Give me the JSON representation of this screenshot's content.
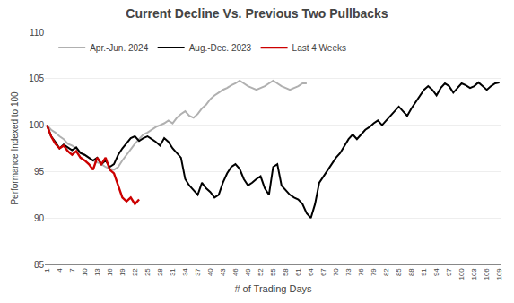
{
  "chart_data": {
    "type": "line",
    "title": "Current Decline Vs. Previous Two Pullbacks",
    "x_label": "# of Trading Days",
    "y_label": "Performance Indexed to 100",
    "xlim": [
      0.5,
      109.5
    ],
    "ylim": [
      85,
      110
    ],
    "xticks": [
      1,
      4,
      7,
      10,
      13,
      16,
      19,
      22,
      25,
      28,
      31,
      34,
      37,
      40,
      43,
      46,
      49,
      52,
      55,
      58,
      61,
      64,
      67,
      70,
      73,
      76,
      79,
      82,
      85,
      88,
      91,
      94,
      97,
      100,
      103,
      106,
      109
    ],
    "yticks": [
      85,
      90,
      95,
      100,
      105,
      110
    ],
    "grid": "y",
    "legend": "upper left",
    "series": [
      {
        "name": "Apr.-Jun. 2024",
        "color": "#b0b0b0",
        "x": [
          1,
          2,
          3,
          4,
          5,
          6,
          7,
          8,
          9,
          10,
          11,
          12,
          13,
          14,
          15,
          16,
          17,
          18,
          19,
          20,
          21,
          22,
          23,
          24,
          25,
          26,
          27,
          28,
          29,
          30,
          31,
          32,
          33,
          34,
          35,
          36,
          37,
          38,
          39,
          40,
          41,
          42,
          43,
          44,
          45,
          46,
          47,
          48,
          49,
          50,
          51,
          52,
          53,
          54,
          55,
          56,
          57,
          58,
          59,
          60,
          61,
          62,
          63
        ],
        "values": [
          100.0,
          99.5,
          99.2,
          98.8,
          98.5,
          98.0,
          97.8,
          97.5,
          97.0,
          96.8,
          96.5,
          96.2,
          96.0,
          95.8,
          95.5,
          95.3,
          95.2,
          95.5,
          96.2,
          96.8,
          97.5,
          98.0,
          98.5,
          99.0,
          99.2,
          99.5,
          99.8,
          100.0,
          100.2,
          100.5,
          100.2,
          100.8,
          101.2,
          101.5,
          101.0,
          100.8,
          101.2,
          101.8,
          102.2,
          102.8,
          103.2,
          103.5,
          103.8,
          104.0,
          104.3,
          104.5,
          104.8,
          104.5,
          104.2,
          104.0,
          103.8,
          104.0,
          104.2,
          104.5,
          104.8,
          104.5,
          104.2,
          104.0,
          103.8,
          104.0,
          104.2,
          104.5,
          104.5
        ]
      },
      {
        "name": "Aug.-Dec. 2023",
        "color": "#000000",
        "x": [
          1,
          2,
          3,
          4,
          5,
          6,
          7,
          8,
          9,
          10,
          11,
          12,
          13,
          14,
          15,
          16,
          17,
          18,
          19,
          20,
          21,
          22,
          23,
          24,
          25,
          26,
          27,
          28,
          29,
          30,
          31,
          32,
          33,
          34,
          35,
          36,
          37,
          38,
          39,
          40,
          41,
          42,
          43,
          44,
          45,
          46,
          47,
          48,
          49,
          50,
          51,
          52,
          53,
          54,
          55,
          56,
          57,
          58,
          59,
          60,
          61,
          62,
          63,
          64,
          65,
          66,
          67,
          68,
          69,
          70,
          71,
          72,
          73,
          74,
          75,
          76,
          77,
          78,
          79,
          80,
          81,
          82,
          83,
          84,
          85,
          86,
          87,
          88,
          89,
          90,
          91,
          92,
          93,
          94,
          95,
          96,
          97,
          98,
          99,
          100,
          101,
          102,
          103,
          104,
          105,
          106,
          107,
          108,
          109
        ],
        "values": [
          100.0,
          98.8,
          98.2,
          97.5,
          97.9,
          97.6,
          97.3,
          97.6,
          97.0,
          96.8,
          96.5,
          96.2,
          96.5,
          95.8,
          96.2,
          95.5,
          95.8,
          96.8,
          97.5,
          98.0,
          98.6,
          98.8,
          98.3,
          98.6,
          98.8,
          98.5,
          98.2,
          97.8,
          98.6,
          98.2,
          97.5,
          97.0,
          96.5,
          94.2,
          93.5,
          93.0,
          92.5,
          93.8,
          93.2,
          92.8,
          92.2,
          92.5,
          93.8,
          94.8,
          95.5,
          95.8,
          95.3,
          94.2,
          93.5,
          93.8,
          94.2,
          94.5,
          93.2,
          92.5,
          95.5,
          95.8,
          93.5,
          93.0,
          92.5,
          92.2,
          92.0,
          91.5,
          90.5,
          90.0,
          91.5,
          93.8,
          94.5,
          95.2,
          95.8,
          96.5,
          97.0,
          97.8,
          98.5,
          99.0,
          98.5,
          99.0,
          99.5,
          99.8,
          100.2,
          100.5,
          100.0,
          100.5,
          101.0,
          101.5,
          102.0,
          101.5,
          101.0,
          101.8,
          102.5,
          103.2,
          103.8,
          104.2,
          103.8,
          103.2,
          104.0,
          104.5,
          104.2,
          103.5,
          104.0,
          104.5,
          104.3,
          104.0,
          104.2,
          104.6,
          104.2,
          103.8,
          104.2,
          104.5,
          104.6
        ]
      },
      {
        "name": "Last 4 Weeks",
        "color": "#cc0000",
        "x": [
          1,
          2,
          3,
          4,
          5,
          6,
          7,
          8,
          9,
          10,
          11,
          12,
          13,
          14,
          15,
          16,
          17,
          18,
          19,
          20,
          21,
          22,
          23
        ],
        "values": [
          100.0,
          98.8,
          98.0,
          97.5,
          97.8,
          97.2,
          96.8,
          97.2,
          96.5,
          96.2,
          95.8,
          95.2,
          96.5,
          95.8,
          96.5,
          95.2,
          94.8,
          93.5,
          92.2,
          91.8,
          92.2,
          91.5,
          92.0
        ]
      }
    ]
  }
}
